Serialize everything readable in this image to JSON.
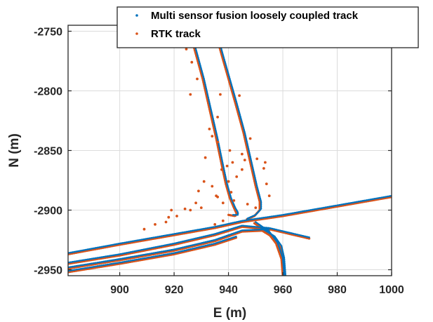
{
  "chart_data": {
    "type": "scatter",
    "title": "",
    "xlabel": "E (m)",
    "ylabel": "N (m)",
    "xlim": [
      881,
      1000
    ],
    "ylim": [
      -2955,
      -2745
    ],
    "xticks": [
      900,
      920,
      940,
      960,
      980,
      1000
    ],
    "yticks": [
      -2750,
      -2800,
      -2850,
      -2900,
      -2950
    ],
    "grid": true,
    "legend_position": "top-right",
    "series": [
      {
        "name": "Multi sensor fusion loosely coupled track",
        "color": "#0072BD",
        "segments": [
          [
            [
              925.5,
              -2745
            ],
            [
              928,
              -2765
            ],
            [
              931,
              -2790
            ],
            [
              933.5,
              -2815
            ],
            [
              936,
              -2840
            ],
            [
              938,
              -2862
            ],
            [
              939.5,
              -2878
            ],
            [
              941,
              -2890
            ],
            [
              942.5,
              -2898
            ],
            [
              943.5,
              -2902
            ],
            [
              943.5,
              -2904
            ],
            [
              941.5,
              -2904
            ]
          ],
          [
            [
              935,
              -2745
            ],
            [
              938,
              -2770
            ],
            [
              940.5,
              -2790
            ],
            [
              943,
              -2810
            ],
            [
              946,
              -2835
            ],
            [
              948.5,
              -2860
            ],
            [
              950.5,
              -2880
            ],
            [
              952,
              -2893
            ],
            [
              952,
              -2899
            ],
            [
              950,
              -2904
            ],
            [
              947,
              -2907
            ]
          ],
          [
            [
              881,
              -2936
            ],
            [
              900,
              -2928
            ],
            [
              920,
              -2920
            ],
            [
              935,
              -2914
            ],
            [
              945,
              -2909
            ],
            [
              960,
              -2904
            ],
            [
              980,
              -2896
            ],
            [
              1000,
              -2888
            ]
          ],
          [
            [
              881,
              -2944
            ],
            [
              900,
              -2937
            ],
            [
              920,
              -2928
            ],
            [
              935,
              -2920
            ],
            [
              945,
              -2913
            ],
            [
              955,
              -2915
            ],
            [
              970,
              -2923
            ]
          ],
          [
            [
              881,
              -2948
            ],
            [
              900,
              -2941
            ],
            [
              920,
              -2933
            ],
            [
              935,
              -2925
            ],
            [
              945,
              -2917
            ],
            [
              955,
              -2916
            ]
          ],
          [
            [
              881,
              -2951
            ],
            [
              900,
              -2944
            ],
            [
              920,
              -2936
            ],
            [
              935,
              -2928
            ],
            [
              943,
              -2922
            ]
          ],
          [
            [
              952,
              -2915
            ],
            [
              957,
              -2922
            ],
            [
              959.5,
              -2930
            ],
            [
              960.5,
              -2940
            ],
            [
              961,
              -2955
            ]
          ],
          [
            [
              950,
              -2910
            ],
            [
              955,
              -2918
            ],
            [
              958,
              -2927
            ],
            [
              960,
              -2940
            ],
            [
              960.5,
              -2955
            ]
          ]
        ]
      },
      {
        "name": "RTK track",
        "color": "#D95319",
        "segments": [
          [
            [
              925,
              -2745
            ],
            [
              927.5,
              -2765
            ],
            [
              930.5,
              -2790
            ],
            [
              933,
              -2815
            ],
            [
              935.5,
              -2840
            ],
            [
              937.5,
              -2862
            ],
            [
              939,
              -2878
            ],
            [
              940.5,
              -2890
            ],
            [
              942,
              -2898
            ],
            [
              943,
              -2903
            ],
            [
              942.5,
              -2905
            ],
            [
              940,
              -2904
            ]
          ],
          [
            [
              934.5,
              -2745
            ],
            [
              937.5,
              -2770
            ],
            [
              940,
              -2790
            ],
            [
              942.5,
              -2810
            ],
            [
              945.5,
              -2835
            ],
            [
              948,
              -2860
            ],
            [
              950,
              -2880
            ],
            [
              951.5,
              -2893
            ],
            [
              951.5,
              -2900
            ],
            [
              949.5,
              -2905
            ],
            [
              946.5,
              -2908
            ]
          ],
          [
            [
              881,
              -2937
            ],
            [
              900,
              -2929
            ],
            [
              920,
              -2921
            ],
            [
              935,
              -2915
            ],
            [
              945,
              -2910
            ],
            [
              960,
              -2905
            ],
            [
              980,
              -2897
            ],
            [
              1000,
              -2889
            ]
          ],
          [
            [
              881,
              -2945
            ],
            [
              900,
              -2938
            ],
            [
              920,
              -2929
            ],
            [
              935,
              -2921
            ],
            [
              945,
              -2914
            ],
            [
              955,
              -2916
            ],
            [
              970,
              -2924
            ]
          ],
          [
            [
              881,
              -2949
            ],
            [
              900,
              -2942
            ],
            [
              920,
              -2934
            ],
            [
              935,
              -2926
            ],
            [
              945,
              -2918
            ],
            [
              955,
              -2917
            ]
          ],
          [
            [
              881,
              -2952
            ],
            [
              900,
              -2945
            ],
            [
              920,
              -2937
            ],
            [
              935,
              -2929
            ],
            [
              943,
              -2923
            ]
          ],
          [
            [
              951.5,
              -2916
            ],
            [
              956.5,
              -2923
            ],
            [
              959,
              -2931
            ],
            [
              960,
              -2941
            ],
            [
              960.5,
              -2955
            ]
          ],
          [
            [
              949.5,
              -2911
            ],
            [
              954.5,
              -2919
            ],
            [
              957.5,
              -2928
            ],
            [
              959.5,
              -2941
            ],
            [
              960,
              -2955
            ]
          ]
        ],
        "outliers": [
          [
            924.5,
            -2765
          ],
          [
            926.5,
            -2776
          ],
          [
            928.5,
            -2790
          ],
          [
            926,
            -2803
          ],
          [
            937,
            -2803
          ],
          [
            936,
            -2822
          ],
          [
            933,
            -2832
          ],
          [
            934,
            -2838
          ],
          [
            936,
            -2843
          ],
          [
            940.5,
            -2850
          ],
          [
            941.5,
            -2860
          ],
          [
            939.5,
            -2863
          ],
          [
            937.5,
            -2866
          ],
          [
            934,
            -2880
          ],
          [
            929,
            -2884
          ],
          [
            928,
            -2894
          ],
          [
            926,
            -2900
          ],
          [
            921,
            -2905
          ],
          [
            917,
            -2910
          ],
          [
            930,
            -2898
          ],
          [
            936,
            -2889
          ],
          [
            938,
            -2894
          ],
          [
            940,
            -2876
          ],
          [
            946,
            -2858
          ],
          [
            945,
            -2853
          ],
          [
            950.5,
            -2857
          ],
          [
            953,
            -2865
          ],
          [
            954,
            -2878
          ],
          [
            955,
            -2888
          ],
          [
            953.5,
            -2860
          ],
          [
            941,
            -2885
          ],
          [
            943,
            -2872
          ],
          [
            935.5,
            -2888
          ],
          [
            931,
            -2876
          ],
          [
            924,
            -2899
          ],
          [
            918,
            -2906
          ],
          [
            913,
            -2912
          ],
          [
            942,
            -2892
          ],
          [
            945,
            -2866
          ],
          [
            948,
            -2840
          ],
          [
            944,
            -2804
          ],
          [
            931.5,
            -2856
          ],
          [
            919,
            -2900
          ],
          [
            909,
            -2916
          ],
          [
            947,
            -2895
          ],
          [
            950,
            -2898
          ],
          [
            938,
            -2909
          ],
          [
            935,
            -2912
          ]
        ]
      }
    ]
  }
}
